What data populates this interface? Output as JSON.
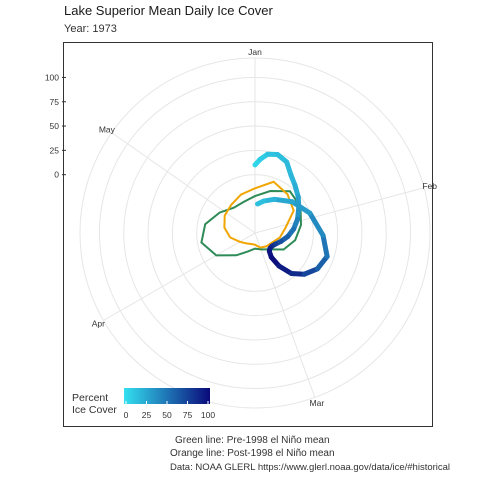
{
  "title": "Lake Superior Mean Daily Ice Cover",
  "subtitle": "Year: 1973",
  "captions": {
    "green": "Green line: Pre-1998 el Niño mean",
    "orange": "Orange line: Post-1998 el Niño mean",
    "source": "Data: NOAA GLERL https://www.glerl.noaa.gov/data/ice/#historical"
  },
  "colors": {
    "green": "#2e8b57",
    "orange": "#f0a500",
    "gradient_low": "#33e0f0",
    "gradient_high": "#0a0a7a",
    "grid": "#e6e6e6"
  },
  "chart_data": {
    "type": "line",
    "coord": "polar",
    "radial_axis": {
      "ticks": [
        0,
        25,
        50,
        75,
        100
      ],
      "labels": [
        "0",
        "25",
        "50",
        "75",
        "100"
      ],
      "range": [
        -60,
        120
      ]
    },
    "months": [
      {
        "label": "Jan",
        "angle_deg": 0
      },
      {
        "label": "Feb",
        "angle_deg": 75
      },
      {
        "label": "Mar",
        "angle_deg": 160
      },
      {
        "label": "Apr",
        "angle_deg": 240
      },
      {
        "label": "May",
        "angle_deg": 305
      }
    ],
    "legend": {
      "title": [
        "Percent",
        "Ice Cover"
      ],
      "ticks": [
        0,
        25,
        50,
        75,
        100
      ],
      "labels": [
        "0",
        "25",
        "50",
        "75",
        "100"
      ],
      "position": "bottom-left"
    },
    "series": [
      {
        "role": "year",
        "points": [
          [
            0,
            10
          ],
          [
            4,
            16
          ],
          [
            9,
            22
          ],
          [
            16,
            24
          ],
          [
            24,
            20
          ],
          [
            32,
            10
          ],
          [
            40,
            4
          ],
          [
            50,
            -2
          ],
          [
            60,
            -8
          ],
          [
            72,
            -14
          ],
          [
            84,
            -20
          ],
          [
            96,
            -26
          ],
          [
            108,
            -32
          ],
          [
            118,
            -36
          ],
          [
            128,
            -38
          ],
          [
            136,
            -38
          ],
          [
            142,
            -36
          ],
          [
            146,
            -30
          ],
          [
            144,
            -18
          ],
          [
            138,
            -4
          ],
          [
            130,
            6
          ],
          [
            120,
            14
          ],
          [
            108,
            18
          ],
          [
            92,
            10
          ],
          [
            70,
            0
          ],
          [
            50,
            -10
          ],
          [
            30,
            -20
          ],
          [
            15,
            -26
          ],
          [
            5,
            -30
          ]
        ],
        "values_color": [
          5,
          10,
          14,
          16,
          18,
          20,
          24,
          30,
          36,
          44,
          52,
          60,
          68,
          76,
          84,
          90,
          95,
          98,
          92,
          85,
          72,
          60,
          50,
          40,
          32,
          26,
          20,
          15,
          12
        ]
      },
      {
        "role": "pre-1998",
        "points": [
          [
            0,
            -22
          ],
          [
            20,
            -14
          ],
          [
            40,
            -4
          ],
          [
            60,
            -6
          ],
          [
            80,
            -12
          ],
          [
            100,
            -18
          ],
          [
            120,
            -26
          ],
          [
            140,
            -38
          ],
          [
            160,
            -42
          ],
          [
            180,
            -44
          ],
          [
            200,
            -40
          ],
          [
            220,
            -30
          ],
          [
            240,
            -14
          ],
          [
            260,
            -4
          ],
          [
            280,
            -8
          ],
          [
            300,
            -18
          ],
          [
            320,
            -26
          ],
          [
            340,
            -26
          ],
          [
            360,
            -22
          ]
        ]
      },
      {
        "role": "post-1998",
        "points": [
          [
            0,
            -14
          ],
          [
            20,
            -4
          ],
          [
            40,
            -8
          ],
          [
            60,
            -14
          ],
          [
            80,
            -28
          ],
          [
            100,
            -34
          ],
          [
            120,
            -40
          ],
          [
            140,
            -42
          ],
          [
            160,
            -44
          ],
          [
            180,
            -48
          ],
          [
            200,
            -48
          ],
          [
            220,
            -46
          ],
          [
            240,
            -42
          ],
          [
            260,
            -34
          ],
          [
            280,
            -28
          ],
          [
            300,
            -24
          ],
          [
            320,
            -22
          ],
          [
            340,
            -18
          ],
          [
            360,
            -14
          ]
        ]
      }
    ]
  }
}
